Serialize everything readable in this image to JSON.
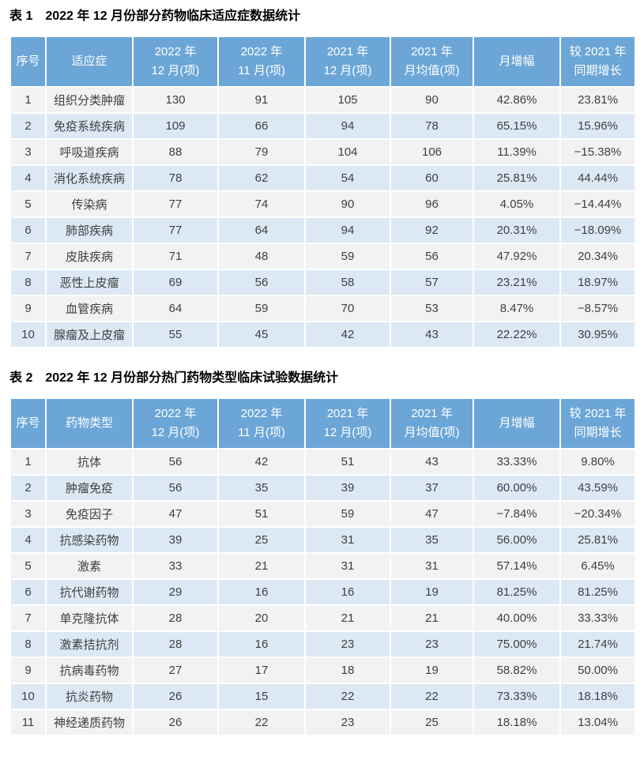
{
  "colors": {
    "header_bg": "#6CA6D7",
    "header_text": "#FFFFFF",
    "row_odd_bg": "#F2F2F2",
    "row_even_bg": "#DCE9F5",
    "cell_text": "#3F3F3F",
    "title_text": "#000000",
    "page_bg": "#FFFFFF"
  },
  "tables": [
    {
      "label": "表 1",
      "title": "2022 年 12 月份部分药物临床适应症数据统计",
      "columns": [
        "序号",
        "适应症",
        "2022 年\n12 月(项)",
        "2022 年\n11 月(项)",
        "2021 年\n12 月(项)",
        "2021 年\n月均值(项)",
        "月增幅",
        "较 2021 年\n同期增长"
      ],
      "rows": [
        [
          "1",
          "组织分类肿瘤",
          "130",
          "91",
          "105",
          "90",
          "42.86%",
          "23.81%"
        ],
        [
          "2",
          "免疫系统疾病",
          "109",
          "66",
          "94",
          "78",
          "65.15%",
          "15.96%"
        ],
        [
          "3",
          "呼吸道疾病",
          "88",
          "79",
          "104",
          "106",
          "11.39%",
          "−15.38%"
        ],
        [
          "4",
          "消化系统疾病",
          "78",
          "62",
          "54",
          "60",
          "25.81%",
          "44.44%"
        ],
        [
          "5",
          "传染病",
          "77",
          "74",
          "90",
          "96",
          "4.05%",
          "−14.44%"
        ],
        [
          "6",
          "肺部疾病",
          "77",
          "64",
          "94",
          "92",
          "20.31%",
          "−18.09%"
        ],
        [
          "7",
          "皮肤疾病",
          "71",
          "48",
          "59",
          "56",
          "47.92%",
          "20.34%"
        ],
        [
          "8",
          "恶性上皮瘤",
          "69",
          "56",
          "58",
          "57",
          "23.21%",
          "18.97%"
        ],
        [
          "9",
          "血管疾病",
          "64",
          "59",
          "70",
          "53",
          "8.47%",
          "−8.57%"
        ],
        [
          "10",
          "腺瘤及上皮瘤",
          "55",
          "45",
          "42",
          "43",
          "22.22%",
          "30.95%"
        ]
      ]
    },
    {
      "label": "表 2",
      "title": "2022 年 12 月份部分热门药物类型临床试验数据统计",
      "columns": [
        "序号",
        "药物类型",
        "2022 年\n12 月(项)",
        "2022 年\n11 月(项)",
        "2021 年\n12 月(项)",
        "2021 年\n月均值(项)",
        "月增幅",
        "较 2021 年\n同期增长"
      ],
      "rows": [
        [
          "1",
          "抗体",
          "56",
          "42",
          "51",
          "43",
          "33.33%",
          "9.80%"
        ],
        [
          "2",
          "肿瘤免疫",
          "56",
          "35",
          "39",
          "37",
          "60.00%",
          "43.59%"
        ],
        [
          "3",
          "免疫因子",
          "47",
          "51",
          "59",
          "47",
          "−7.84%",
          "−20.34%"
        ],
        [
          "4",
          "抗感染药物",
          "39",
          "25",
          "31",
          "35",
          "56.00%",
          "25.81%"
        ],
        [
          "5",
          "激素",
          "33",
          "21",
          "31",
          "31",
          "57.14%",
          "6.45%"
        ],
        [
          "6",
          "抗代谢药物",
          "29",
          "16",
          "16",
          "19",
          "81.25%",
          "81.25%"
        ],
        [
          "7",
          "单克隆抗体",
          "28",
          "20",
          "21",
          "21",
          "40.00%",
          "33.33%"
        ],
        [
          "8",
          "激素拮抗剂",
          "28",
          "16",
          "23",
          "23",
          "75.00%",
          "21.74%"
        ],
        [
          "9",
          "抗病毒药物",
          "27",
          "17",
          "18",
          "19",
          "58.82%",
          "50.00%"
        ],
        [
          "10",
          "抗炎药物",
          "26",
          "15",
          "22",
          "22",
          "73.33%",
          "18.18%"
        ],
        [
          "11",
          "神经递质药物",
          "26",
          "22",
          "23",
          "25",
          "18.18%",
          "13.04%"
        ]
      ]
    }
  ]
}
